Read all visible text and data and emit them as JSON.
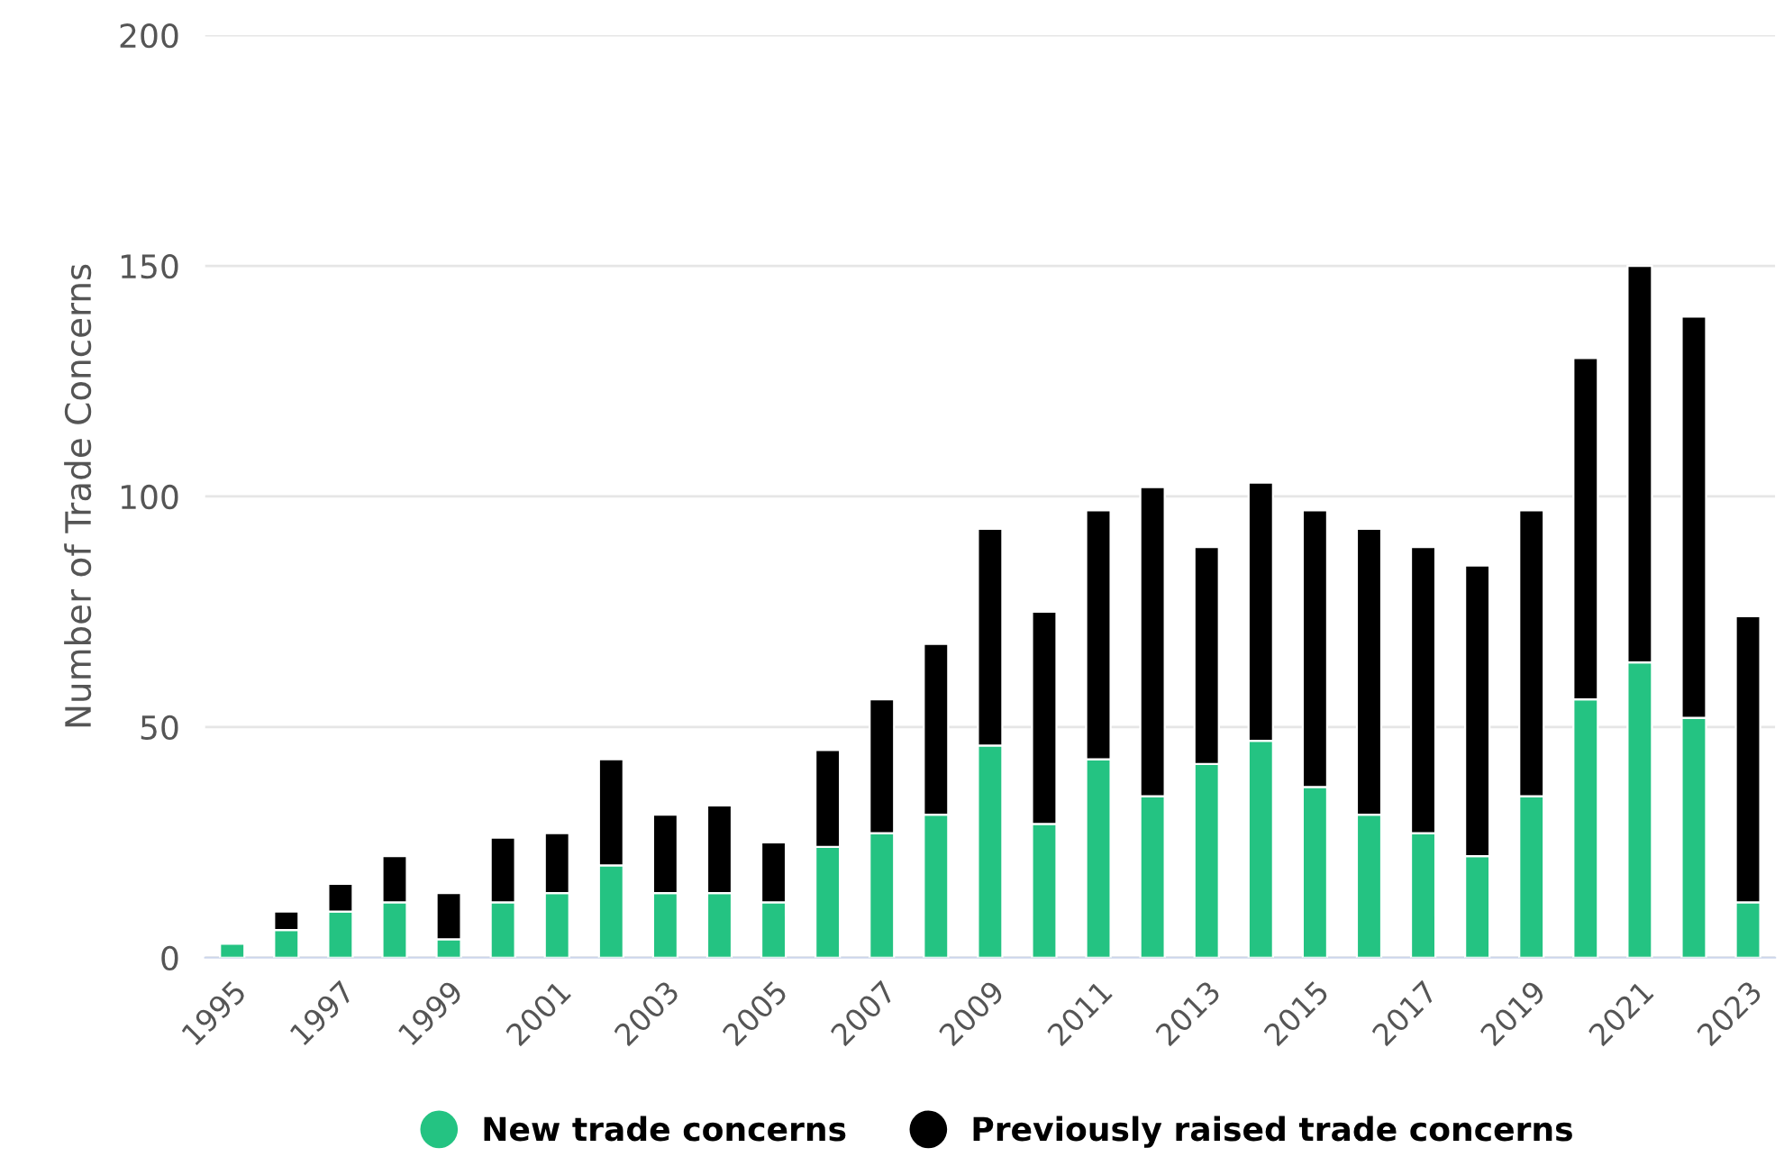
{
  "chart_data": {
    "type": "bar",
    "stacked": true,
    "ylabel": "Number of Trade Concerns",
    "categories": [
      "1995",
      null,
      "1997",
      null,
      "1999",
      null,
      "2001",
      null,
      "2003",
      null,
      "2005",
      null,
      "2007",
      null,
      "2009",
      null,
      "2011",
      null,
      "2013",
      null,
      "2015",
      null,
      "2017",
      null,
      "2019",
      null,
      "2021",
      null,
      "2023"
    ],
    "series": [
      {
        "name": "New trade concerns",
        "color": "#24c382",
        "values": [
          3,
          6,
          10,
          12,
          4,
          12,
          14,
          20,
          14,
          14,
          12,
          24,
          27,
          31,
          46,
          29,
          43,
          35,
          42,
          47,
          37,
          31,
          27,
          22,
          35,
          56,
          64,
          52,
          12
        ]
      },
      {
        "name": "Previously raised trade concerns",
        "color": "#000000",
        "values": [
          null,
          4,
          6,
          10,
          10,
          14,
          13,
          23,
          17,
          19,
          13,
          21,
          29,
          37,
          47,
          46,
          54,
          67,
          47,
          56,
          60,
          62,
          62,
          63,
          62,
          74,
          86,
          87,
          62
        ]
      }
    ],
    "ylim": [
      0,
      200
    ],
    "yticks": [
      0,
      50,
      100,
      150,
      200
    ],
    "grid": "y",
    "legend": "bottom",
    "marker": "circle"
  }
}
